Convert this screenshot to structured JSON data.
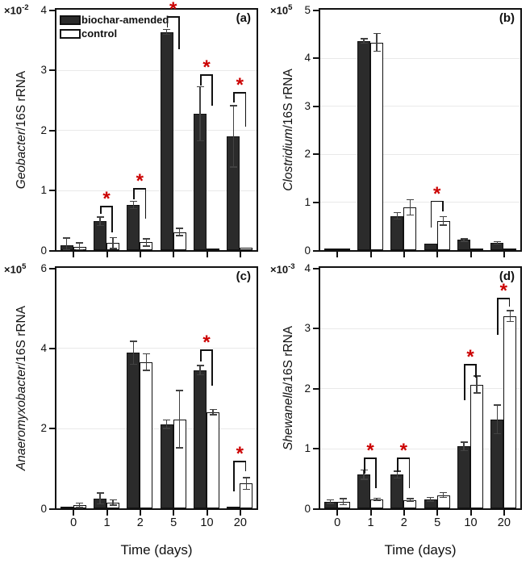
{
  "figure": {
    "xlabel": "Time (days)",
    "significance_symbol": "*",
    "legend": {
      "items": [
        {
          "label": "biochar-amended",
          "swatch": "filled"
        },
        {
          "label": "control",
          "swatch": "open"
        }
      ]
    },
    "colors": {
      "bar_fill": "#2b2b2b",
      "bar_open": "#ffffff",
      "significance": "#cc0000",
      "axis": "#111111",
      "gridline": "#e9e9e9"
    }
  },
  "chart_data": [
    {
      "type": "bar",
      "panel_label": "(a)",
      "ylabel_italic": "Geobacter",
      "ylabel_rest": "/16S rRNA",
      "scale_mantissa": "×10",
      "scale_exponent": "-2",
      "ylim": [
        0,
        4
      ],
      "yticks": [
        0,
        1,
        2,
        3,
        4
      ],
      "grid": "horizontal-faint",
      "legend_position": "top-left-inside",
      "categories": [
        "0",
        "1",
        "2",
        "5",
        "10",
        "20"
      ],
      "series": [
        {
          "name": "biochar-amended",
          "values": [
            0.08,
            0.48,
            0.75,
            3.63,
            2.27,
            1.89
          ],
          "errors": [
            0.13,
            0.08,
            0.07,
            0.05,
            0.46,
            0.52
          ]
        },
        {
          "name": "control",
          "values": [
            0.06,
            0.12,
            0.13,
            0.3,
            0.03,
            0.04
          ],
          "errors": [
            0.07,
            0.1,
            0.07,
            0.07,
            0,
            0
          ]
        }
      ],
      "significance": [
        {
          "category": "1",
          "cat_index": 1,
          "bracket_top": 0.74,
          "left_end": 0.6,
          "right_end": 0.29
        },
        {
          "category": "2",
          "cat_index": 2,
          "bracket_top": 1.03,
          "left_end": 0.85,
          "right_end": 0.52
        },
        {
          "category": "5",
          "cat_index": 3,
          "bracket_top": 3.89,
          "left_end": 3.7,
          "right_end": 3.34
        },
        {
          "category": "10",
          "cat_index": 4,
          "bracket_top": 2.92,
          "left_end": 2.74,
          "right_end": 2.4
        },
        {
          "category": "20",
          "cat_index": 5,
          "bracket_top": 2.63,
          "left_end": 2.45,
          "right_end": 2.05
        }
      ],
      "show_x_tick_labels": false,
      "show_xlabel": false
    },
    {
      "type": "bar",
      "panel_label": "(b)",
      "ylabel_italic": "Clostridium",
      "ylabel_rest": "/16S rRNA",
      "scale_mantissa": "×10",
      "scale_exponent": "5",
      "ylim": [
        0,
        5
      ],
      "yticks": [
        0,
        1,
        2,
        3,
        4,
        5
      ],
      "grid": "horizontal-faint",
      "categories": [
        "0",
        "1",
        "2",
        "5",
        "10",
        "20"
      ],
      "series": [
        {
          "name": "biochar-amended",
          "values": [
            0.04,
            4.35,
            0.71,
            0.13,
            0.21,
            0.15
          ],
          "errors": [
            0.01,
            0.06,
            0.08,
            0.02,
            0.04,
            0.04
          ]
        },
        {
          "name": "control",
          "values": [
            0.01,
            4.32,
            0.89,
            0.61,
            0.01,
            0.01
          ],
          "errors": [
            0,
            0.2,
            0.17,
            0.1,
            0,
            0
          ]
        }
      ],
      "significance": [
        {
          "category": "5",
          "cat_index": 3,
          "bracket_top": 1.03,
          "left_end": 0.47,
          "right_end": 0.8
        }
      ],
      "show_x_tick_labels": false,
      "show_xlabel": false
    },
    {
      "type": "bar",
      "panel_label": "(c)",
      "ylabel_italic": "Anaeromyxobacter",
      "ylabel_rest": "/16S rRNA",
      "scale_mantissa": "×10",
      "scale_exponent": "5",
      "ylim": [
        0,
        6
      ],
      "yticks": [
        0,
        2,
        4,
        6
      ],
      "grid": "horizontal-faint",
      "categories": [
        "0",
        "1",
        "2",
        "5",
        "10",
        "20"
      ],
      "series": [
        {
          "name": "biochar-amended",
          "values": [
            0.04,
            0.25,
            3.88,
            2.1,
            3.45,
            0.02
          ],
          "errors": [
            0.03,
            0.15,
            0.3,
            0.12,
            0.13,
            0
          ]
        },
        {
          "name": "control",
          "values": [
            0.08,
            0.15,
            3.65,
            2.22,
            2.4,
            0.62
          ],
          "errors": [
            0.07,
            0.08,
            0.22,
            0.73,
            0.08,
            0.16
          ]
        }
      ],
      "significance": [
        {
          "category": "10",
          "cat_index": 4,
          "bracket_top": 3.97,
          "left_end": 3.66,
          "right_end": 3.06
        },
        {
          "category": "20",
          "cat_index": 5,
          "bracket_top": 1.19,
          "left_end": 0.42,
          "right_end": 0.92
        }
      ],
      "show_x_tick_labels": true,
      "show_xlabel": true
    },
    {
      "type": "bar",
      "panel_label": "(d)",
      "ylabel_italic": "Shewanella",
      "ylabel_rest": "/16S rRNA",
      "scale_mantissa": "×10",
      "scale_exponent": "-3",
      "ylim": [
        0,
        4
      ],
      "yticks": [
        0,
        1,
        2,
        3,
        4
      ],
      "grid": "horizontal-faint",
      "categories": [
        "0",
        "1",
        "2",
        "5",
        "10",
        "20"
      ],
      "series": [
        {
          "name": "biochar-amended",
          "values": [
            0.11,
            0.56,
            0.56,
            0.15,
            1.03,
            1.48
          ],
          "errors": [
            0.04,
            0.09,
            0.07,
            0.04,
            0.08,
            0.25
          ]
        },
        {
          "name": "control",
          "values": [
            0.11,
            0.15,
            0.14,
            0.22,
            2.06,
            3.2
          ],
          "errors": [
            0.06,
            0.03,
            0.03,
            0.05,
            0.15,
            0.1
          ]
        }
      ],
      "significance": [
        {
          "category": "1",
          "cat_index": 1,
          "bracket_top": 0.84,
          "left_end": 0.58,
          "right_end": 0.34
        },
        {
          "category": "2",
          "cat_index": 2,
          "bracket_top": 0.84,
          "left_end": 0.6,
          "right_end": 0.34
        },
        {
          "category": "10",
          "cat_index": 4,
          "bracket_top": 2.4,
          "left_end": 1.8,
          "right_end": 2.18
        },
        {
          "category": "20",
          "cat_index": 5,
          "bracket_top": 3.5,
          "left_end": 2.88,
          "right_end": 3.35
        }
      ],
      "show_x_tick_labels": true,
      "show_xlabel": true
    }
  ]
}
